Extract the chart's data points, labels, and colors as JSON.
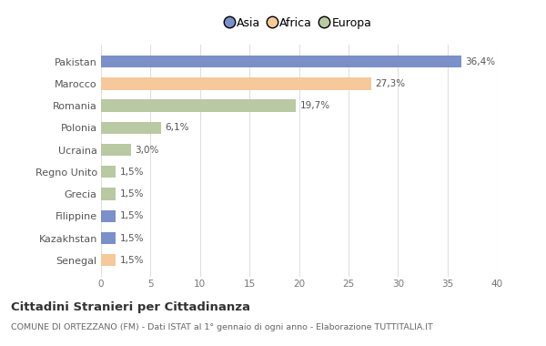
{
  "categories": [
    "Pakistan",
    "Marocco",
    "Romania",
    "Polonia",
    "Ucraina",
    "Regno Unito",
    "Grecia",
    "Filippine",
    "Kazakhstan",
    "Senegal"
  ],
  "values": [
    36.4,
    27.3,
    19.7,
    6.1,
    3.0,
    1.5,
    1.5,
    1.5,
    1.5,
    1.5
  ],
  "labels": [
    "36,4%",
    "27,3%",
    "19,7%",
    "6,1%",
    "3,0%",
    "1,5%",
    "1,5%",
    "1,5%",
    "1,5%",
    "1,5%"
  ],
  "colors": [
    "#7b8fc9",
    "#f5c99a",
    "#b8c9a3",
    "#b8c9a3",
    "#b8c9a3",
    "#b8c9a3",
    "#b8c9a3",
    "#7b8fc9",
    "#7b8fc9",
    "#f5c99a"
  ],
  "legend_labels": [
    "Asia",
    "Africa",
    "Europa"
  ],
  "legend_colors": [
    "#7b8fc9",
    "#f5c99a",
    "#b8c9a3"
  ],
  "title": "Cittadini Stranieri per Cittadinanza",
  "subtitle": "COMUNE DI ORTEZZANO (FM) - Dati ISTAT al 1° gennaio di ogni anno - Elaborazione TUTTITALIA.IT",
  "xlim": [
    0,
    40
  ],
  "xticks": [
    0,
    5,
    10,
    15,
    20,
    25,
    30,
    35,
    40
  ],
  "background_color": "#ffffff",
  "grid_color": "#e0e0e0",
  "bar_height": 0.55
}
